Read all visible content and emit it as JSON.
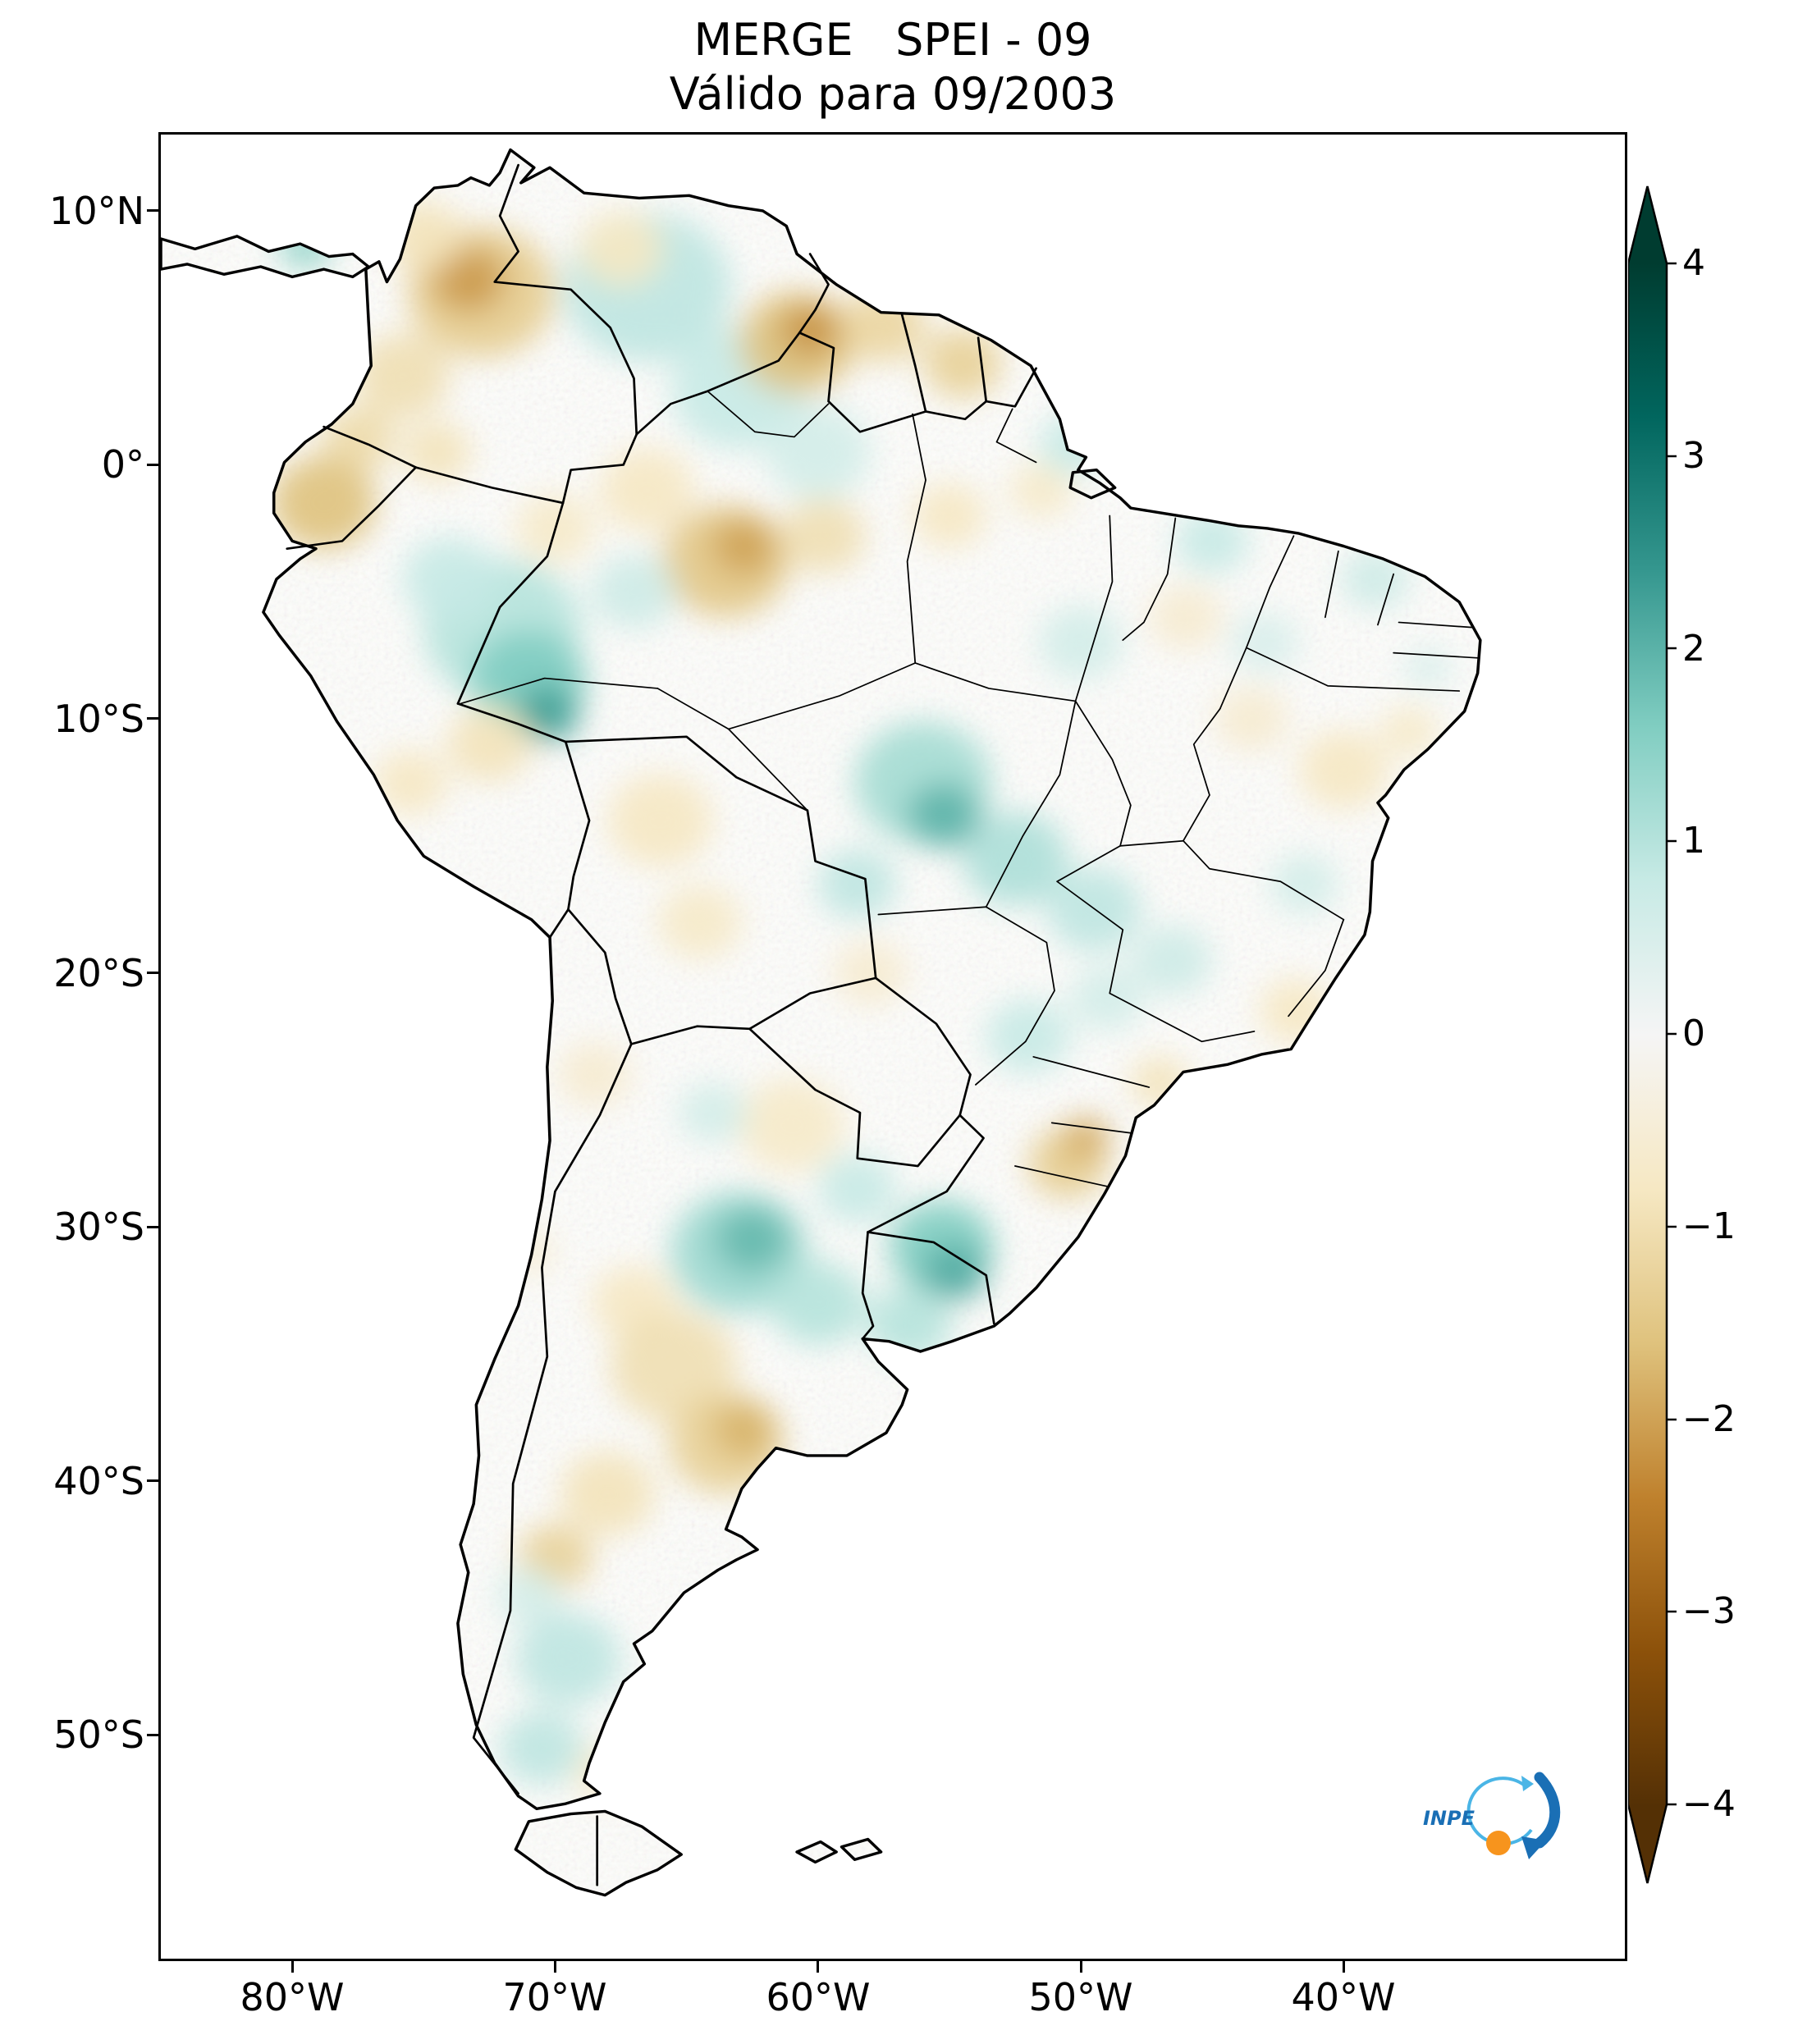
{
  "title": {
    "line1": "MERGE   SPEI - 09",
    "line2": "Válido para 09/2003"
  },
  "axes": {
    "lat_ticks": [
      "10°N",
      "0°",
      "10°S",
      "20°S",
      "30°S",
      "40°S",
      "50°S"
    ],
    "lon_ticks": [
      "80°W",
      "70°W",
      "60°W",
      "50°W",
      "40°W"
    ]
  },
  "colorbar": {
    "vmin": -4,
    "vmax": 4,
    "cmap": "BrBG",
    "ticks": [
      "4",
      "3",
      "2",
      "1",
      "0",
      "−1",
      "−2",
      "−3",
      "−4"
    ],
    "stops": [
      {
        "v": 4,
        "c": "#003c30"
      },
      {
        "v": 3.2,
        "c": "#01665e"
      },
      {
        "v": 2.4,
        "c": "#35978f"
      },
      {
        "v": 1.6,
        "c": "#80cdc1"
      },
      {
        "v": 0.8,
        "c": "#c7eae5"
      },
      {
        "v": 0,
        "c": "#f5f5f5"
      },
      {
        "v": -0.8,
        "c": "#f6e8c3"
      },
      {
        "v": -1.6,
        "c": "#dfc27d"
      },
      {
        "v": -2.4,
        "c": "#bf812d"
      },
      {
        "v": -3.2,
        "c": "#8c510a"
      },
      {
        "v": -4,
        "c": "#543005"
      }
    ]
  },
  "logo": {
    "label": "INPE",
    "blue": "#1a6fb5",
    "light_blue": "#4ab5e6",
    "orange": "#f7941d"
  },
  "map": {
    "region": "South America",
    "index": "SPEI-09",
    "valid_for": "09/2003",
    "anomalies": [
      {
        "lon": -66.5,
        "lat": 7.0,
        "r": 3.2,
        "v": 0.9
      },
      {
        "lon": -63.0,
        "lat": 3.0,
        "r": 2.6,
        "v": 0.8
      },
      {
        "lon": -60.0,
        "lat": 0.5,
        "r": 2.0,
        "v": 0.6
      },
      {
        "lon": -66.5,
        "lat": -1.0,
        "r": 1.8,
        "v": -0.8
      },
      {
        "lon": -70.0,
        "lat": -2.5,
        "r": 1.5,
        "v": -0.7
      },
      {
        "lon": -72.8,
        "lat": 6.8,
        "r": 2.8,
        "v": -1.4
      },
      {
        "lon": -73.3,
        "lat": 7.3,
        "r": 1.4,
        "v": -2.1
      },
      {
        "lon": -75.8,
        "lat": 3.5,
        "r": 1.8,
        "v": -1.0
      },
      {
        "lon": -75.0,
        "lat": 9.0,
        "r": 1.5,
        "v": -0.9
      },
      {
        "lon": -67.5,
        "lat": 8.5,
        "r": 1.6,
        "v": -0.8
      },
      {
        "lon": -77.5,
        "lat": 1.0,
        "r": 1.4,
        "v": -1.1
      },
      {
        "lon": -78.8,
        "lat": -1.5,
        "r": 2.0,
        "v": -1.6
      },
      {
        "lon": -74.5,
        "lat": 0.5,
        "r": 1.3,
        "v": -0.9
      },
      {
        "lon": -60.8,
        "lat": 4.8,
        "r": 2.2,
        "v": -1.6
      },
      {
        "lon": -60.3,
        "lat": 5.3,
        "r": 1.1,
        "v": -2.2
      },
      {
        "lon": -57.5,
        "lat": 5.5,
        "r": 1.6,
        "v": -1.2
      },
      {
        "lon": -54.5,
        "lat": 4.0,
        "r": 1.5,
        "v": -1.3
      },
      {
        "lon": -79.5,
        "lat": 8.6,
        "r": 1.0,
        "v": 1.4
      },
      {
        "lon": -63.5,
        "lat": -3.8,
        "r": 2.4,
        "v": -1.5
      },
      {
        "lon": -62.8,
        "lat": -3.2,
        "r": 1.2,
        "v": -2.0
      },
      {
        "lon": -59.8,
        "lat": -2.8,
        "r": 1.6,
        "v": -1.0
      },
      {
        "lon": -55.0,
        "lat": -2.0,
        "r": 1.4,
        "v": -0.8
      },
      {
        "lon": -51.5,
        "lat": -1.0,
        "r": 1.2,
        "v": -0.7
      },
      {
        "lon": -50.3,
        "lat": 0.8,
        "r": 1.3,
        "v": 0.8
      },
      {
        "lon": -45.0,
        "lat": -3.0,
        "r": 1.4,
        "v": 0.8
      },
      {
        "lon": -38.8,
        "lat": -4.5,
        "r": 1.3,
        "v": 0.7
      },
      {
        "lon": -43.0,
        "lat": -7.0,
        "r": 1.3,
        "v": 0.5
      },
      {
        "lon": -36.8,
        "lat": -8.0,
        "r": 0.9,
        "v": 0.5
      },
      {
        "lon": -46.0,
        "lat": -6.0,
        "r": 1.4,
        "v": -0.6
      },
      {
        "lon": -43.5,
        "lat": -10.0,
        "r": 1.4,
        "v": -0.6
      },
      {
        "lon": -40.0,
        "lat": -12.0,
        "r": 1.7,
        "v": -0.8
      },
      {
        "lon": -37.5,
        "lat": -10.5,
        "r": 1.1,
        "v": -0.7
      },
      {
        "lon": -50.0,
        "lat": -7.0,
        "r": 1.6,
        "v": 0.6
      },
      {
        "lon": -72.0,
        "lat": -6.5,
        "r": 3.0,
        "v": 1.0
      },
      {
        "lon": -74.0,
        "lat": -4.5,
        "r": 1.8,
        "v": 0.8
      },
      {
        "lon": -67.0,
        "lat": -5.0,
        "r": 1.6,
        "v": 0.7
      },
      {
        "lon": -71.0,
        "lat": -8.5,
        "r": 2.2,
        "v": 1.6
      },
      {
        "lon": -70.3,
        "lat": -9.8,
        "r": 1.2,
        "v": 2.3
      },
      {
        "lon": -72.5,
        "lat": -11.0,
        "r": 1.6,
        "v": -0.9
      },
      {
        "lon": -75.5,
        "lat": -12.5,
        "r": 1.4,
        "v": -0.8
      },
      {
        "lon": -66.0,
        "lat": -14.0,
        "r": 2.0,
        "v": -0.8
      },
      {
        "lon": -64.5,
        "lat": -18.0,
        "r": 1.6,
        "v": -0.7
      },
      {
        "lon": -56.0,
        "lat": -12.5,
        "r": 2.6,
        "v": 1.2
      },
      {
        "lon": -52.5,
        "lat": -15.5,
        "r": 2.0,
        "v": 1.1
      },
      {
        "lon": -58.5,
        "lat": -16.5,
        "r": 1.5,
        "v": 0.9
      },
      {
        "lon": -55.2,
        "lat": -13.8,
        "r": 1.4,
        "v": 2.0
      },
      {
        "lon": -49.5,
        "lat": -17.5,
        "r": 1.8,
        "v": 0.9
      },
      {
        "lon": -46.5,
        "lat": -19.5,
        "r": 1.5,
        "v": 0.7
      },
      {
        "lon": -41.5,
        "lat": -16.5,
        "r": 1.3,
        "v": 0.6
      },
      {
        "lon": -58.0,
        "lat": -20.0,
        "r": 1.4,
        "v": -0.6
      },
      {
        "lon": -61.0,
        "lat": -26.0,
        "r": 2.0,
        "v": -0.7
      },
      {
        "lon": -68.5,
        "lat": -24.0,
        "r": 1.4,
        "v": -0.6
      },
      {
        "lon": -64.0,
        "lat": -25.5,
        "r": 1.3,
        "v": 0.6
      },
      {
        "lon": -52.0,
        "lat": -22.5,
        "r": 1.6,
        "v": 0.8
      },
      {
        "lon": -49.0,
        "lat": -21.0,
        "r": 1.4,
        "v": 0.6
      },
      {
        "lon": -47.0,
        "lat": -24.3,
        "r": 1.1,
        "v": -0.9
      },
      {
        "lon": -41.8,
        "lat": -21.5,
        "r": 1.4,
        "v": -0.8
      },
      {
        "lon": -50.5,
        "lat": -27.5,
        "r": 1.5,
        "v": -1.4
      },
      {
        "lon": -49.8,
        "lat": -26.5,
        "r": 0.9,
        "v": -1.9
      },
      {
        "lon": -58.5,
        "lat": -28.5,
        "r": 1.5,
        "v": 0.8
      },
      {
        "lon": -63.0,
        "lat": -31.0,
        "r": 2.6,
        "v": 1.3
      },
      {
        "lon": -60.0,
        "lat": -33.0,
        "r": 1.8,
        "v": 1.0
      },
      {
        "lon": -62.5,
        "lat": -30.5,
        "r": 1.4,
        "v": 1.9
      },
      {
        "lon": -55.3,
        "lat": -30.8,
        "r": 2.0,
        "v": 1.6
      },
      {
        "lon": -56.5,
        "lat": -33.8,
        "r": 1.6,
        "v": 1.0
      },
      {
        "lon": -54.8,
        "lat": -31.8,
        "r": 1.2,
        "v": 2.1
      },
      {
        "lon": -67.0,
        "lat": -33.0,
        "r": 1.6,
        "v": -0.8
      },
      {
        "lon": -71.0,
        "lat": -31.0,
        "r": 1.0,
        "v": -0.5
      },
      {
        "lon": -65.5,
        "lat": -35.5,
        "r": 2.4,
        "v": -1.0
      },
      {
        "lon": -63.5,
        "lat": -38.5,
        "r": 2.2,
        "v": -1.3
      },
      {
        "lon": -62.8,
        "lat": -38.0,
        "r": 1.2,
        "v": -1.8
      },
      {
        "lon": -68.0,
        "lat": -40.5,
        "r": 1.8,
        "v": -0.9
      },
      {
        "lon": -70.0,
        "lat": -43.0,
        "r": 1.4,
        "v": -1.3
      },
      {
        "lon": -71.0,
        "lat": -44.5,
        "r": 1.2,
        "v": 0.6
      },
      {
        "lon": -69.5,
        "lat": -47.0,
        "r": 2.0,
        "v": 0.9
      },
      {
        "lon": -70.5,
        "lat": -50.5,
        "r": 1.6,
        "v": 0.9
      },
      {
        "lon": -68.0,
        "lat": -51.5,
        "r": 1.2,
        "v": -0.7
      }
    ]
  }
}
